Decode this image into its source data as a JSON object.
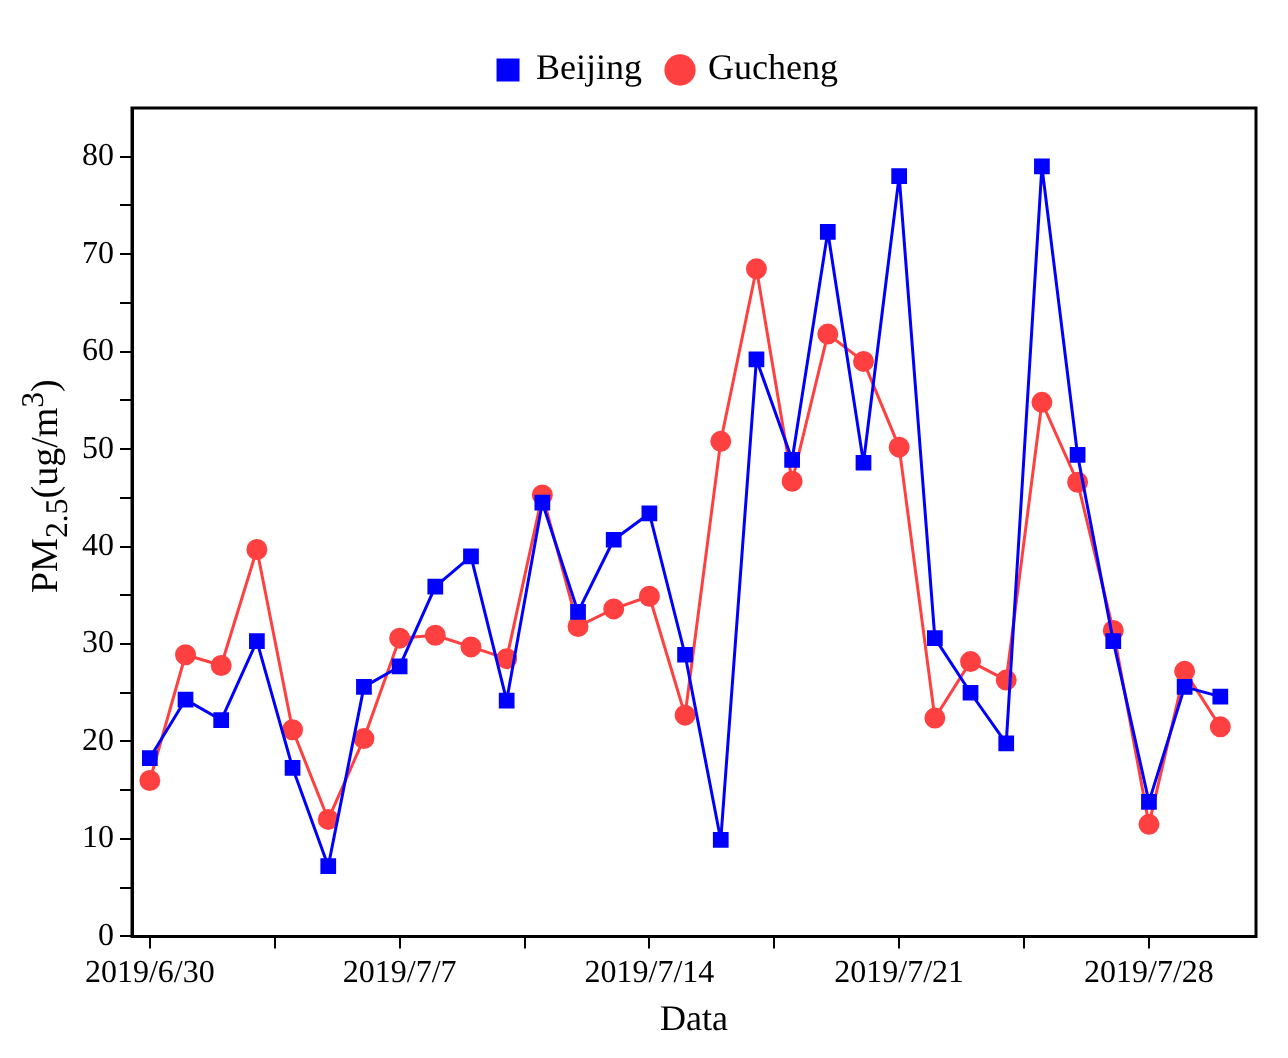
{
  "chart_data": {
    "type": "line",
    "xlabel": "Data",
    "ylabel": "PM$_{2.5}$(ug/m$^{3}$)",
    "x": [
      "2019-06-30",
      "2019-07-01",
      "2019-07-02",
      "2019-07-03",
      "2019-07-04",
      "2019-07-05",
      "2019-07-06",
      "2019-07-07",
      "2019-07-08",
      "2019-07-09",
      "2019-07-10",
      "2019-07-11",
      "2019-07-12",
      "2019-07-13",
      "2019-07-14",
      "2019-07-15",
      "2019-07-16",
      "2019-07-17",
      "2019-07-18",
      "2019-07-19",
      "2019-07-20",
      "2019-07-21",
      "2019-07-22",
      "2019-07-23",
      "2019-07-24",
      "2019-07-25",
      "2019-07-26",
      "2019-07-27",
      "2019-07-28",
      "2019-07-29",
      "2019-07-30"
    ],
    "series": [
      {
        "name": "Beijing",
        "color": "#0000ff",
        "marker": "square",
        "values": [
          18.3,
          24.3,
          22.2,
          30.3,
          17.3,
          7.2,
          25.6,
          27.7,
          35.9,
          39,
          24.2,
          44.5,
          33.3,
          40.7,
          43.4,
          28.9,
          9.9,
          59.2,
          48.9,
          72.3,
          48.6,
          78,
          30.6,
          25,
          19.8,
          79,
          49.4,
          30.3,
          13.8,
          25.6,
          24.6
        ]
      },
      {
        "name": "Gucheng",
        "color": "#ff4040",
        "marker": "circle",
        "values": [
          16,
          28.9,
          27.8,
          39.7,
          21.2,
          12,
          20.3,
          30.6,
          30.9,
          29.7,
          28.5,
          45.3,
          31.8,
          33.6,
          34.9,
          22.7,
          50.8,
          68.5,
          46.7,
          61.8,
          59,
          50.2,
          22.4,
          28.2,
          26.3,
          54.8,
          46.6,
          31.4,
          11.5,
          27.2,
          21.5
        ]
      }
    ],
    "xlim": [
      "2019-06-29T12:00",
      "2019-07-31"
    ],
    "xticks": [
      {
        "value": "2019-06-30",
        "label": "2019/6/30"
      },
      {
        "value": "2019-07-03T12:00",
        "label": null
      },
      {
        "value": "2019-07-07",
        "label": "2019/7/7"
      },
      {
        "value": "2019-07-10T12:00",
        "label": null
      },
      {
        "value": "2019-07-14",
        "label": "2019/7/14"
      },
      {
        "value": "2019-07-17T12:00",
        "label": null
      },
      {
        "value": "2019-07-21",
        "label": "2019/7/21"
      },
      {
        "value": "2019-07-24T12:00",
        "label": null
      },
      {
        "value": "2019-07-28",
        "label": "2019/7/28"
      }
    ],
    "ylim": [
      0,
      85
    ],
    "yticks": [
      0,
      {
        "value": 5,
        "label": null
      },
      10,
      {
        "value": 15,
        "label": null
      },
      20,
      {
        "value": 25,
        "label": null
      },
      30,
      {
        "value": 35,
        "label": null
      },
      40,
      {
        "value": 45,
        "label": null
      },
      50,
      {
        "value": 55,
        "label": null
      },
      60,
      {
        "value": 65,
        "label": null
      },
      70,
      {
        "value": 75,
        "label": null
      },
      80
    ],
    "grid": false,
    "legend": "top",
    "line_style": "solid"
  }
}
